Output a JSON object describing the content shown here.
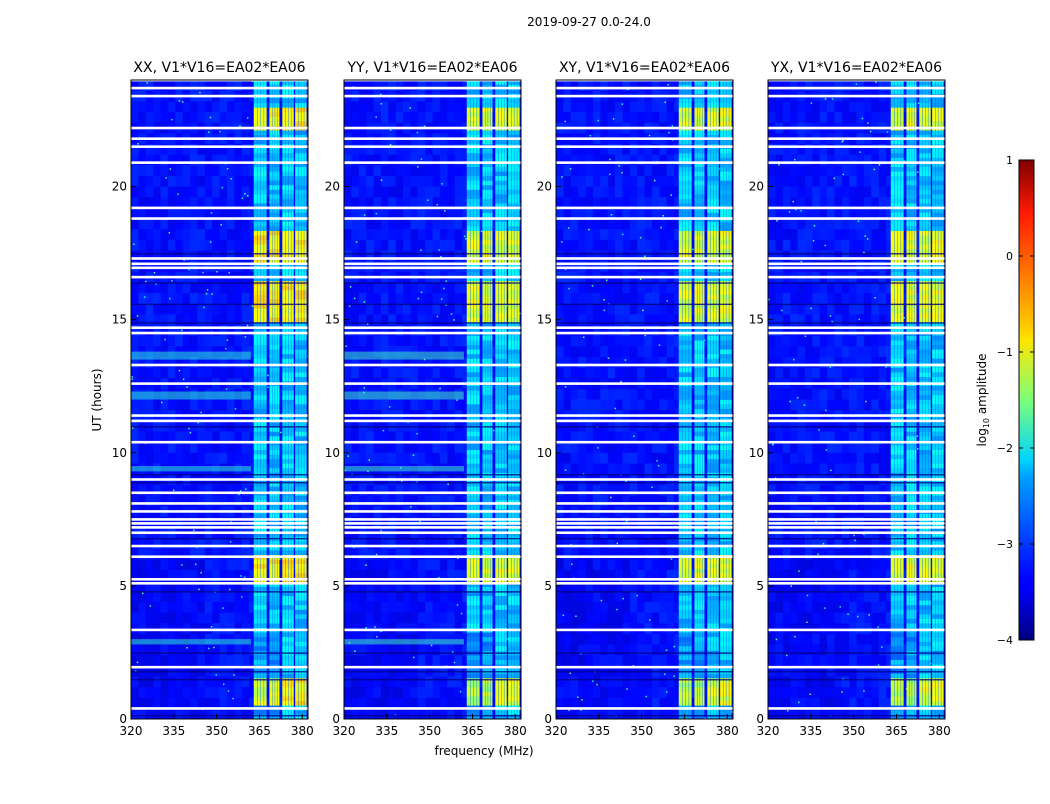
{
  "figure_title": "2019-09-27 0.0-24.0",
  "chart_data": {
    "type": "heatmap",
    "title": "2019-09-27 0.0-24.0",
    "xlabel": "frequency (MHz)",
    "ylabel": "UT (hours)",
    "xlim": [
      320,
      382
    ],
    "ylim": [
      0,
      24
    ],
    "x_ticks": [
      320,
      335,
      350,
      365,
      380
    ],
    "y_ticks": [
      0,
      5,
      10,
      15,
      20
    ],
    "colorbar": {
      "label": "log",
      "label_sub": "10",
      "label_rest": " amplitude",
      "range": [
        -4,
        1
      ],
      "ticks": [
        1,
        0,
        -1,
        -2,
        -3,
        -4
      ],
      "tick_labels": [
        "1",
        "0",
        "−1",
        "−2",
        "−3",
        "−4"
      ],
      "colormap": "jet"
    },
    "series": [
      {
        "name": "XX, V1*V16=EA02*EA06",
        "background": -3.3,
        "bright_level": -0.7,
        "low_band_level": -1.9
      },
      {
        "name": "YY, V1*V16=EA02*EA06",
        "background": -3.3,
        "bright_level": -0.9,
        "low_band_level": -1.8
      },
      {
        "name": "XY, V1*V16=EA02*EA06",
        "background": -3.3,
        "bright_level": -0.9,
        "low_band_level": -2.6
      },
      {
        "name": "YX, V1*V16=EA02*EA06",
        "background": -3.3,
        "bright_level": -0.9,
        "low_band_level": -2.6
      }
    ],
    "rfi_columns_mhz": [
      [
        363,
        367.5
      ],
      [
        368.5,
        372
      ],
      [
        373,
        377
      ],
      [
        377.5,
        381.5
      ]
    ],
    "bright_rfi_intervals_ut": [
      [
        22.2,
        23.0
      ],
      [
        15.0,
        16.5
      ],
      [
        17.2,
        18.3
      ],
      [
        5.2,
        6.2
      ],
      [
        0.5,
        1.6
      ]
    ],
    "flagged_gaps_ut": [
      0.4,
      1.95,
      3.35,
      5.1,
      5.25,
      6.1,
      6.5,
      7.0,
      7.2,
      7.35,
      7.5,
      7.8,
      8.1,
      8.5,
      9.0,
      10.4,
      11.2,
      11.4,
      12.6,
      13.3,
      14.5,
      14.7,
      16.6,
      16.95,
      17.1,
      17.3,
      18.8,
      19.2,
      20.9,
      21.5,
      21.8,
      22.2,
      23.4,
      23.7,
      24.0
    ]
  }
}
